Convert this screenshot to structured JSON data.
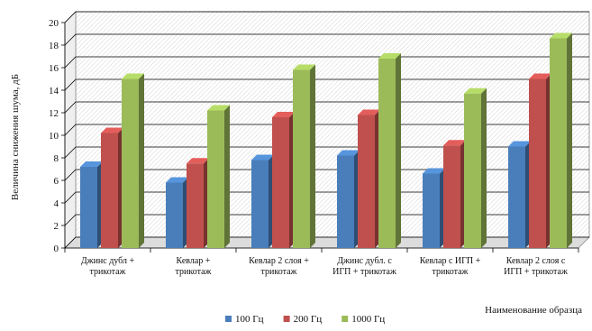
{
  "chart_data": {
    "type": "bar",
    "ylabel": "Величина снижения шума, дБ",
    "xlabel": "Наименование образца",
    "ylim": [
      0,
      20
    ],
    "yticks": [
      0,
      2,
      4,
      6,
      8,
      10,
      12,
      14,
      16,
      18,
      20
    ],
    "grid": true,
    "legend_position": "bottom",
    "categories": [
      [
        "Джинс дубл +",
        "трикотаж"
      ],
      [
        "Кевлар +",
        "трикотаж"
      ],
      [
        "Кевлар 2 слоя +",
        "трикотаж"
      ],
      [
        "Джинс дубл. с",
        "ИГП + трикотаж"
      ],
      [
        "Кевлар с ИГП +",
        "трикотаж"
      ],
      [
        "Кевлар 2 слоя с",
        "ИГП + трикотаж"
      ]
    ],
    "series": [
      {
        "name": "100 Гц",
        "color": "#4a7ebb",
        "values": [
          7.2,
          5.8,
          7.8,
          8.2,
          6.6,
          9.0
        ]
      },
      {
        "name": "200 Гц",
        "color": "#c0504d",
        "values": [
          10.2,
          7.5,
          11.6,
          11.8,
          9.1,
          15.0
        ]
      },
      {
        "name": "1000 Гц",
        "color": "#9bbb59",
        "values": [
          15.0,
          12.2,
          15.8,
          16.8,
          13.7,
          18.6
        ]
      }
    ]
  }
}
